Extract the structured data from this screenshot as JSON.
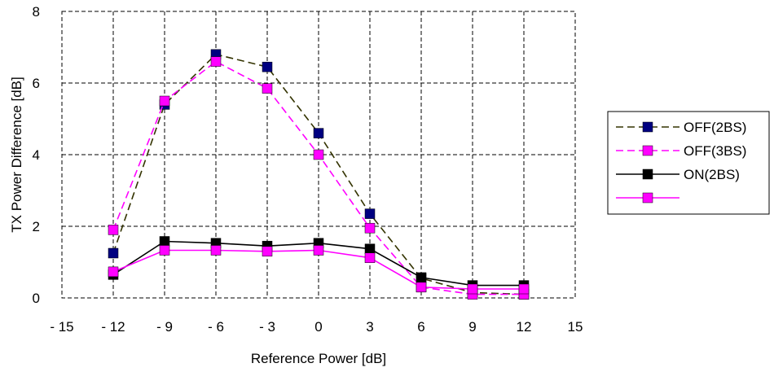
{
  "chart_data": {
    "type": "line",
    "title": "",
    "xlabel": "Reference Power [dB]",
    "ylabel": "TX Power Difference [dB]",
    "xlim": [
      -15,
      15
    ],
    "ylim": [
      0,
      8
    ],
    "x_ticks": [
      -15,
      -12,
      -9,
      -6,
      -3,
      0,
      3,
      6,
      9,
      12,
      15
    ],
    "x_tick_labels": [
      "- 15",
      "- 12",
      "- 9",
      "- 6",
      "- 3",
      "0",
      "3",
      "6",
      "9",
      "12",
      "15"
    ],
    "y_ticks": [
      0,
      2,
      4,
      6,
      8
    ],
    "y_tick_labels": [
      "0",
      "2",
      "4",
      "6",
      "8"
    ],
    "grid": true,
    "legend_position": "right",
    "x": [
      -12,
      -9,
      -6,
      -3,
      0,
      3,
      6,
      9,
      12
    ],
    "series": [
      {
        "name": "OFF(2BS)",
        "values": [
          1.25,
          5.4,
          6.8,
          6.45,
          4.6,
          2.35,
          0.55,
          0.15,
          0.1
        ],
        "line_color": "#333300",
        "marker_color": "#000080",
        "dash": "dashed"
      },
      {
        "name": "OFF(3BS)",
        "values": [
          1.9,
          5.5,
          6.6,
          5.85,
          4.0,
          1.95,
          0.3,
          0.1,
          0.1
        ],
        "line_color": "#ff00ff",
        "marker_color": "#ff00ff",
        "dash": "dashed"
      },
      {
        "name": "ON(2BS)",
        "values": [
          0.65,
          1.58,
          1.53,
          1.45,
          1.53,
          1.37,
          0.57,
          0.35,
          0.35
        ],
        "line_color": "#000000",
        "marker_color": "#000000",
        "dash": "solid"
      },
      {
        "name": "",
        "values": [
          0.73,
          1.33,
          1.33,
          1.3,
          1.33,
          1.12,
          0.3,
          0.25,
          0.25
        ],
        "line_color": "#ff00ff",
        "marker_color": "#ff00ff",
        "dash": "solid"
      }
    ]
  }
}
